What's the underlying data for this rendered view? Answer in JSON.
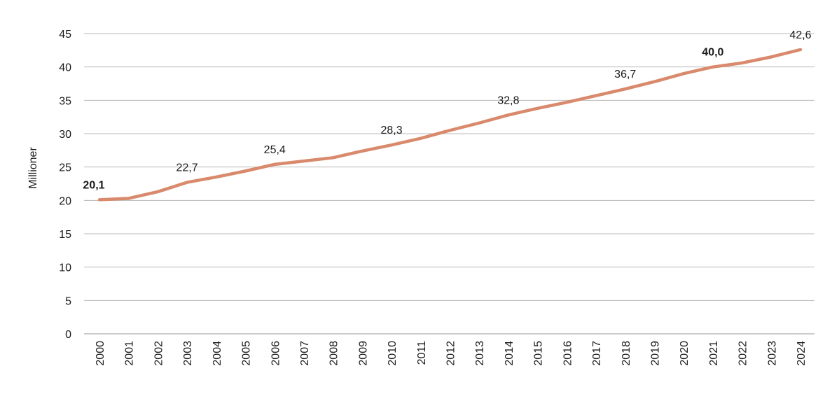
{
  "chart_data": {
    "type": "line",
    "title": "",
    "xlabel": "",
    "ylabel": "Millioner",
    "ylim": [
      0,
      45
    ],
    "yticks": [
      0,
      5,
      10,
      15,
      20,
      25,
      30,
      35,
      40,
      45
    ],
    "grid": "horizontal",
    "legend": "none",
    "line_color": "#d9896c",
    "x": [
      "2000",
      "2001",
      "2002",
      "2003",
      "2004",
      "2005",
      "2006",
      "2007",
      "2008",
      "2009",
      "2010",
      "2011",
      "2012",
      "2013",
      "2014",
      "2015",
      "2016",
      "2017",
      "2018",
      "2019",
      "2020",
      "2021",
      "2022",
      "2023",
      "2024"
    ],
    "values": [
      20.1,
      20.3,
      21.3,
      22.7,
      23.5,
      24.4,
      25.4,
      25.9,
      26.4,
      27.4,
      28.3,
      29.3,
      30.5,
      31.6,
      32.8,
      33.8,
      34.7,
      35.7,
      36.7,
      37.8,
      39.0,
      40.0,
      40.6,
      41.5,
      42.6
    ],
    "data_labels": [
      {
        "x": "2000",
        "text": "20,1",
        "bold": true
      },
      {
        "x": "2003",
        "text": "22,7",
        "bold": false
      },
      {
        "x": "2006",
        "text": "25,4",
        "bold": false
      },
      {
        "x": "2010",
        "text": "28,3",
        "bold": false
      },
      {
        "x": "2014",
        "text": "32,8",
        "bold": false
      },
      {
        "x": "2018",
        "text": "36,7",
        "bold": false
      },
      {
        "x": "2021",
        "text": "40,0",
        "bold": true
      },
      {
        "x": "2024",
        "text": "42,6",
        "bold": false
      }
    ]
  }
}
